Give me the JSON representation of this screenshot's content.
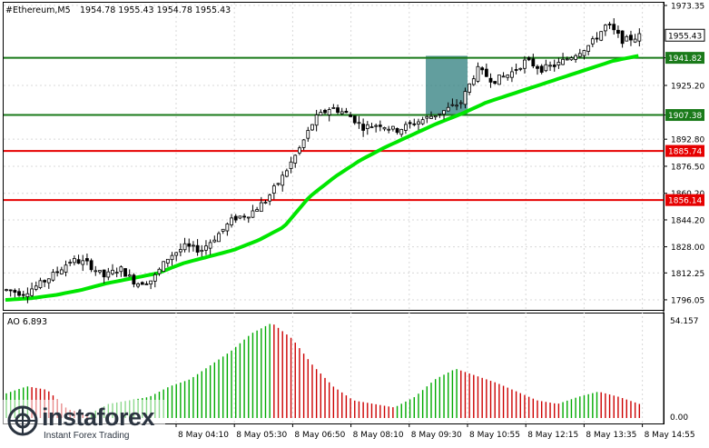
{
  "header": {
    "symbol": "#Ethereum,M5",
    "ohlc": "1954.78 1955.43 1954.78 1955.43"
  },
  "indicator": {
    "label": "AO 6.893",
    "top_value": "54.157",
    "bottom_value": "0.00"
  },
  "watermark": {
    "brand": "instaforex",
    "tagline": "Instant Forex Trading"
  },
  "colors": {
    "candle": "#000000",
    "ma": "#00e600",
    "resistance": "#1a7a1a",
    "support": "#e60000",
    "highlight": "#2e7d7d",
    "ao_up": "#00aa00",
    "ao_down": "#cc0000"
  },
  "chart_data": [
    {
      "type": "candlestick",
      "title": "#Ethereum,M5",
      "y_range": [
        1790,
        1975
      ],
      "y_ticks": [
        "1973.35",
        "1941.82",
        "1925.20",
        "1907.38",
        "1892.80",
        "1876.50",
        "1860.20",
        "1844.20",
        "1828.00",
        "1812.25",
        "1796.05"
      ],
      "x_labels": [
        "8 May 04:10",
        "8 May 05:30",
        "8 May 06:50",
        "8 May 08:10",
        "8 May 09:30",
        "8 May 10:55",
        "8 May 12:15",
        "8 May 13:35",
        "8 May 14:55"
      ],
      "current_price": "1955.43",
      "levels": [
        {
          "value": 1941.82,
          "label": "1941.82",
          "kind": "resistance"
        },
        {
          "value": 1907.38,
          "label": "1907.38",
          "kind": "resistance"
        },
        {
          "value": 1885.74,
          "label": "1885.74",
          "kind": "support"
        },
        {
          "value": 1856.14,
          "label": "1856.14",
          "kind": "support"
        }
      ],
      "highlight_zone": {
        "price_range": [
          1907.38,
          1943
        ]
      },
      "close_anchors": [
        1802,
        1800,
        1805,
        1812,
        1820,
        1818,
        1810,
        1815,
        1806,
        1808,
        1822,
        1828,
        1826,
        1835,
        1845,
        1848,
        1856,
        1870,
        1886,
        1905,
        1912,
        1908,
        1900,
        1902,
        1898,
        1902,
        1906,
        1910,
        1915,
        1935,
        1928,
        1932,
        1940,
        1935,
        1938,
        1944,
        1950,
        1962,
        1952,
        1955
      ],
      "ma_anchors": [
        1796,
        1797,
        1799,
        1802,
        1806,
        1809,
        1812,
        1818,
        1822,
        1826,
        1832,
        1840,
        1858,
        1870,
        1880,
        1888,
        1895,
        1902,
        1908,
        1915,
        1920,
        1925,
        1930,
        1935,
        1940,
        1943
      ]
    },
    {
      "type": "bar",
      "title": "AO",
      "y_range": [
        0,
        54.157
      ],
      "value_anchors": [
        14,
        18,
        16,
        5,
        2,
        8,
        10,
        12,
        18,
        22,
        30,
        38,
        48,
        54,
        45,
        30,
        18,
        10,
        8,
        6,
        12,
        22,
        28,
        24,
        20,
        15,
        10,
        8,
        12,
        15,
        12,
        8
      ]
    }
  ]
}
